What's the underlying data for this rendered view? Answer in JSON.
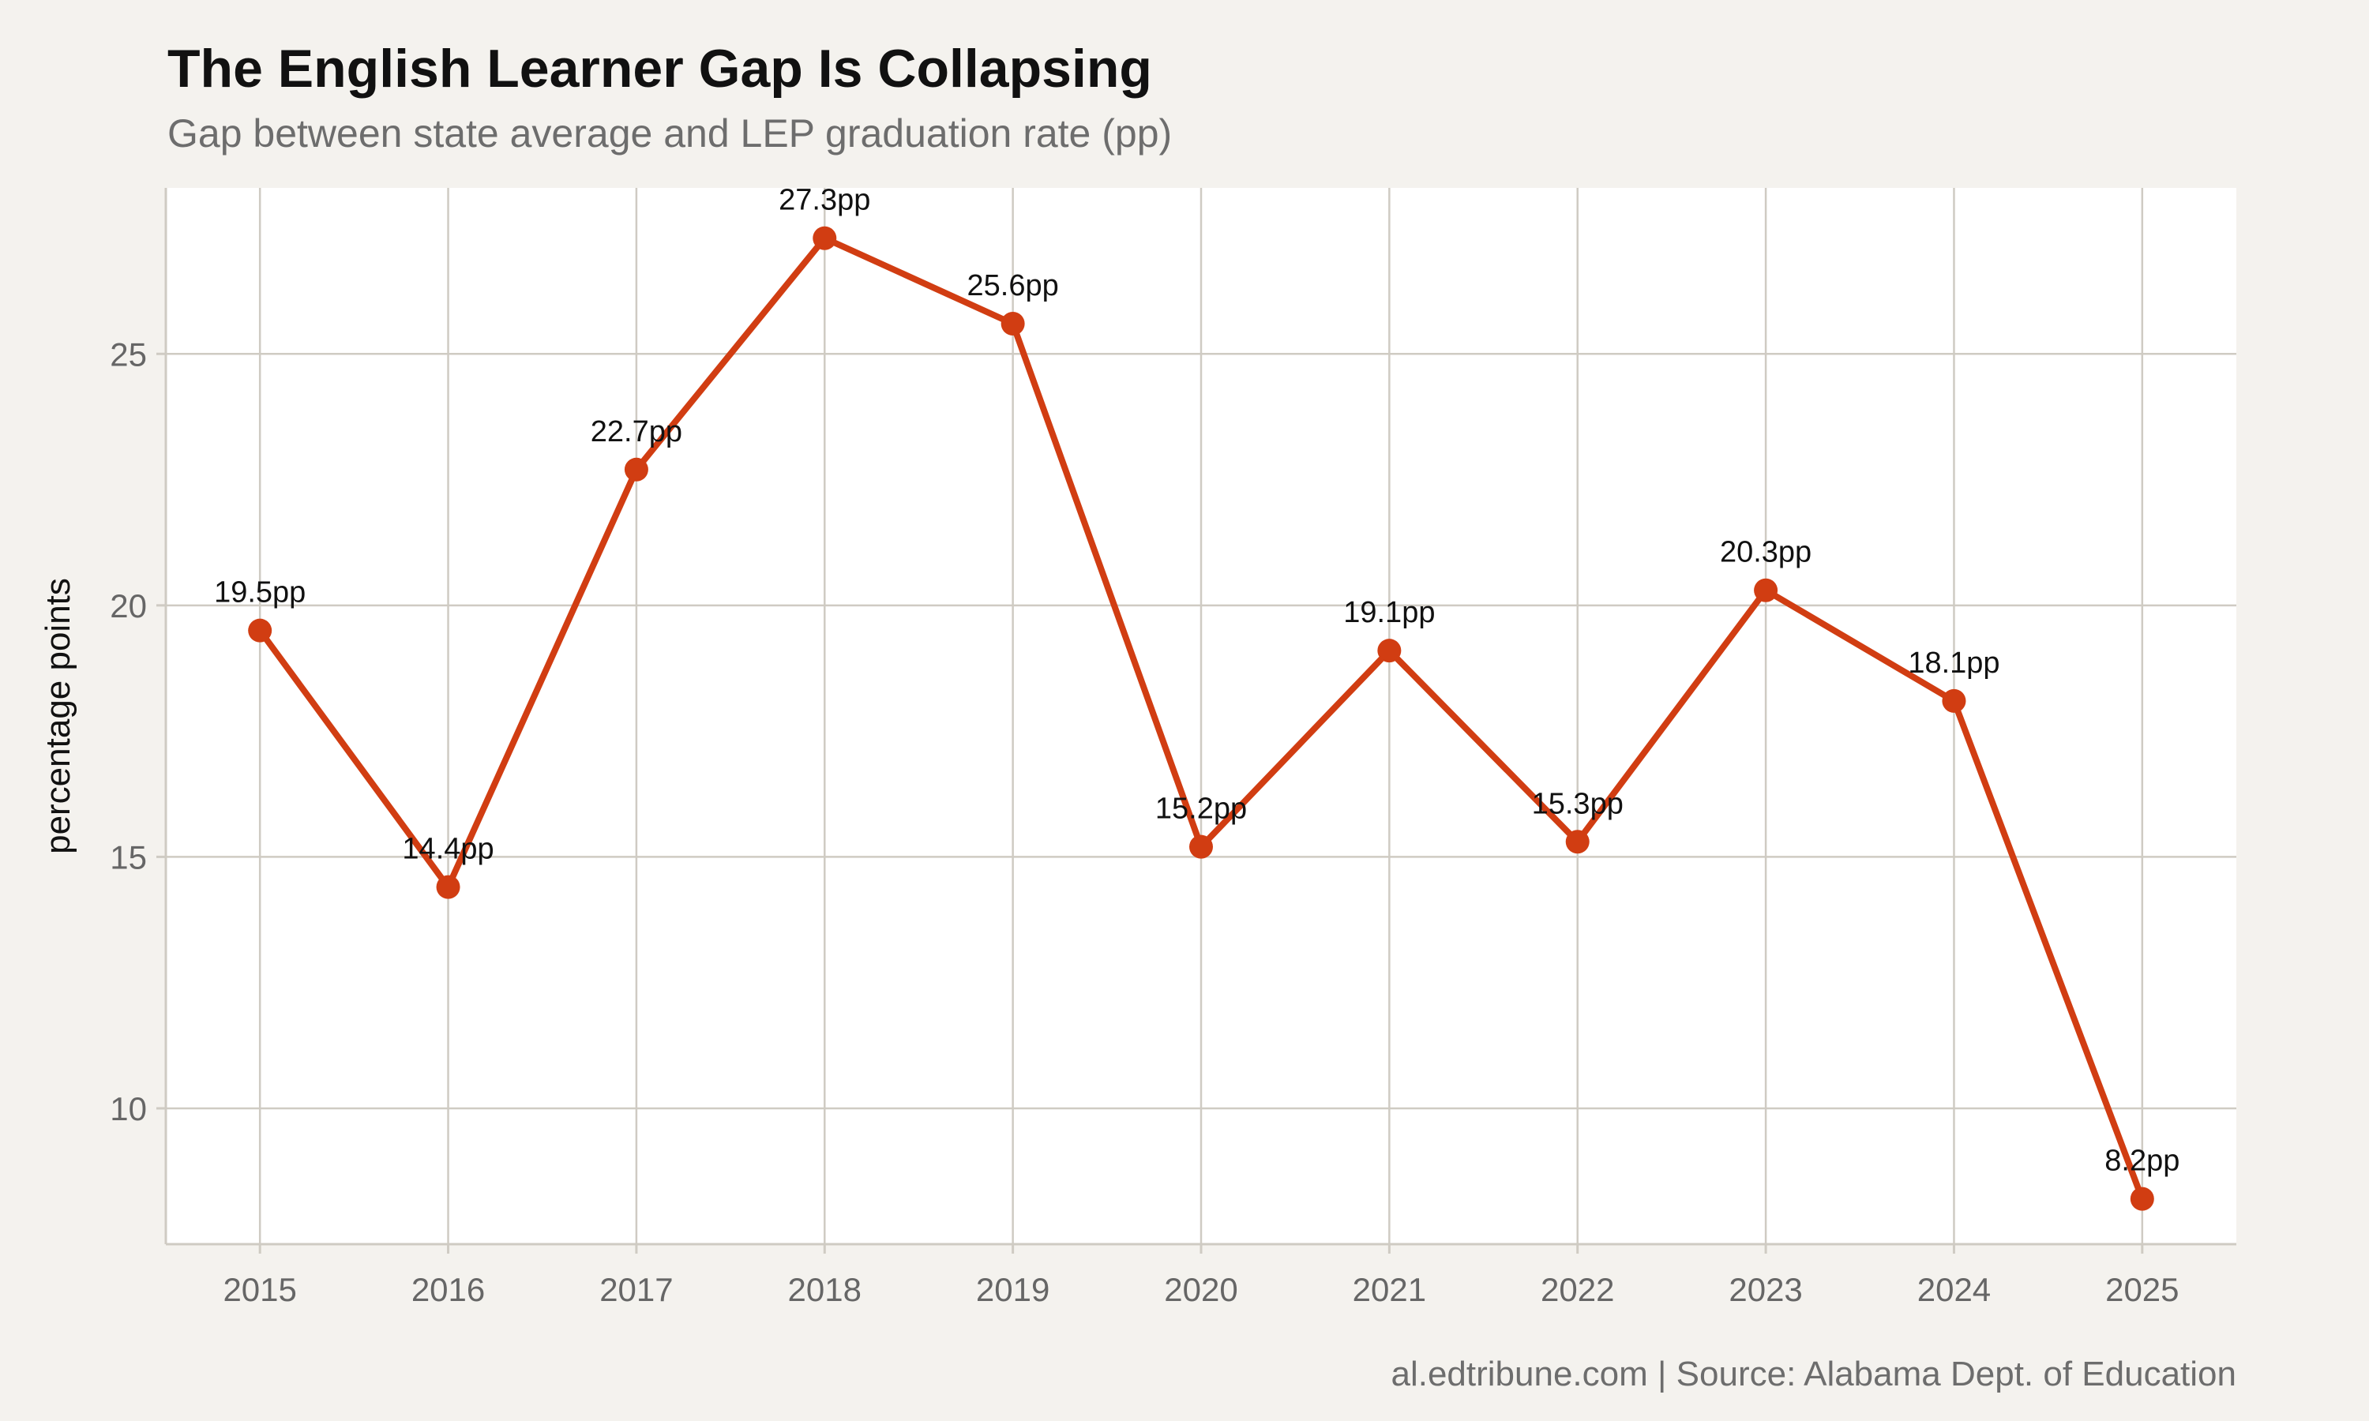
{
  "title": "The English Learner Gap Is Collapsing",
  "subtitle": "Gap between state average and LEP graduation rate (pp)",
  "caption": "al.edtribune.com | Source: Alabama Dept. of Education",
  "colors": {
    "background": "#f4f2ee",
    "panel": "#ffffff",
    "grid": "#cfcbc3",
    "series": "#d13d12"
  },
  "chart_data": {
    "type": "line",
    "title": "The English Learner Gap Is Collapsing",
    "subtitle": "Gap between state average and LEP graduation rate (pp)",
    "xlabel": "",
    "ylabel": "percentage points",
    "x": [
      2015,
      2016,
      2017,
      2018,
      2019,
      2020,
      2021,
      2022,
      2023,
      2024,
      2025
    ],
    "x_tick_labels": [
      "2015",
      "2016",
      "2017",
      "2018",
      "2019",
      "2020",
      "2021",
      "2022",
      "2023",
      "2024",
      "2025"
    ],
    "xlim": [
      2014.5,
      2025.5
    ],
    "ylim": [
      7.3,
      28.3
    ],
    "y_ticks": [
      10,
      15,
      20,
      25
    ],
    "y_tick_labels": [
      "10",
      "15",
      "20",
      "25"
    ],
    "grid": true,
    "series": [
      {
        "values": [
          19.5,
          14.4,
          22.7,
          27.3,
          25.6,
          15.2,
          19.1,
          15.3,
          20.3,
          18.1,
          8.2
        ],
        "data_labels": [
          "19.5pp",
          "14.4pp",
          "22.7pp",
          "27.3pp",
          "25.6pp",
          "15.2pp",
          "19.1pp",
          "15.3pp",
          "20.3pp",
          "18.1pp",
          "8.2pp"
        ]
      }
    ]
  }
}
